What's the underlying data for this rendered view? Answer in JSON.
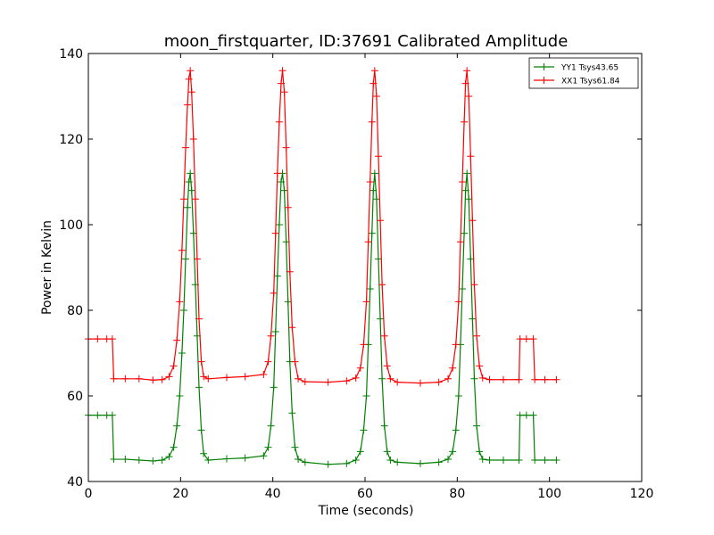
{
  "chart_data": {
    "type": "line",
    "title": "moon_firstquarter, ID:37691 Calibrated Amplitude",
    "xlabel": "Time (seconds)",
    "ylabel": "Power in Kelvin",
    "xlim": [
      0,
      120
    ],
    "ylim": [
      40,
      140
    ],
    "xticks": [
      "0",
      "20",
      "40",
      "60",
      "80",
      "100",
      "120"
    ],
    "yticks": [
      "40",
      "60",
      "80",
      "100",
      "120",
      "140"
    ],
    "grid": false,
    "legend_position": "top-right",
    "series": [
      {
        "name": "YY1 Tsys43.65",
        "color": "#008000",
        "x": [
          0,
          2,
          4,
          5.2,
          5.5,
          8,
          11,
          14,
          16,
          17.5,
          18.5,
          19.2,
          19.8,
          20.3,
          20.7,
          21.1,
          21.5,
          21.8,
          22.1,
          22.4,
          22.8,
          23.2,
          23.6,
          24.0,
          24.5,
          25,
          26,
          30,
          34,
          38,
          39,
          39.6,
          40.2,
          40.6,
          41.0,
          41.4,
          41.8,
          42.1,
          42.5,
          42.9,
          43.3,
          43.7,
          44.2,
          44.8,
          45.5,
          47,
          52,
          56,
          58,
          59,
          59.7,
          60.3,
          60.7,
          61.1,
          61.5,
          61.8,
          62.1,
          62.5,
          62.9,
          63.3,
          63.7,
          64.2,
          64.8,
          65.5,
          67,
          72,
          76,
          78,
          79,
          79.7,
          80.3,
          80.7,
          81.1,
          81.5,
          81.8,
          82.1,
          82.5,
          82.9,
          83.3,
          83.7,
          84.2,
          84.8,
          85.5,
          87,
          90,
          93.4,
          93.6,
          95,
          96.5,
          96.8,
          99,
          101.5
        ],
        "values": [
          55.5,
          55.5,
          55.5,
          55.5,
          45.2,
          45.2,
          45.0,
          44.8,
          45.0,
          45.8,
          48,
          53,
          60,
          70,
          80,
          92,
          104,
          110,
          112,
          108,
          98,
          86,
          74,
          62,
          52,
          46.5,
          45.0,
          45.3,
          45.5,
          46,
          48,
          53,
          62,
          75,
          88,
          100,
          110,
          112,
          108,
          96,
          82,
          68,
          56,
          48,
          45.2,
          44.5,
          44.0,
          44.2,
          45,
          47,
          52,
          60,
          72,
          85,
          98,
          108,
          112,
          106,
          92,
          78,
          64,
          53,
          47,
          45,
          44.5,
          44.2,
          44.5,
          45.2,
          47,
          52,
          60,
          72,
          85,
          98,
          108,
          112,
          106,
          92,
          78,
          64,
          53,
          47,
          45.2,
          45.0,
          45.0,
          45.0,
          55.5,
          55.5,
          55.5,
          45.0,
          45.0,
          45.0
        ]
      },
      {
        "name": "XX1 Tsys61.84",
        "color": "#ff0000",
        "x": [
          0,
          2,
          4,
          5.2,
          5.5,
          8,
          11,
          14,
          16,
          17.5,
          18.5,
          19.2,
          19.8,
          20.3,
          20.7,
          21.1,
          21.5,
          21.8,
          22.1,
          22.4,
          22.8,
          23.2,
          23.6,
          24.0,
          24.5,
          25,
          26,
          30,
          34,
          38,
          39,
          39.6,
          40.2,
          40.6,
          41.0,
          41.4,
          41.8,
          42.1,
          42.5,
          42.9,
          43.3,
          43.7,
          44.2,
          44.8,
          45.5,
          47,
          52,
          56,
          58,
          59,
          59.7,
          60.3,
          60.7,
          61.1,
          61.5,
          61.8,
          62.1,
          62.5,
          62.9,
          63.3,
          63.7,
          64.2,
          64.8,
          65.5,
          67,
          72,
          76,
          78,
          79,
          79.7,
          80.3,
          80.7,
          81.1,
          81.5,
          81.8,
          82.1,
          82.5,
          82.9,
          83.3,
          83.7,
          84.2,
          84.8,
          85.5,
          87,
          90,
          93.4,
          93.6,
          95,
          96.5,
          96.8,
          99,
          101.5
        ],
        "values": [
          73.3,
          73.3,
          73.3,
          73.3,
          64.0,
          64.0,
          64.0,
          63.7,
          63.8,
          64.5,
          67,
          73,
          82,
          94,
          106,
          118,
          128,
          134,
          136,
          131,
          120,
          106,
          92,
          78,
          68,
          64.5,
          64.0,
          64.3,
          64.5,
          65,
          68,
          74,
          84,
          98,
          112,
          124,
          133,
          136,
          131,
          118,
          104,
          89,
          76,
          68,
          64,
          63.3,
          63.2,
          63.5,
          64.2,
          66.5,
          72,
          82,
          96,
          110,
          124,
          133,
          136,
          130,
          116,
          101,
          86,
          74,
          67,
          64,
          63.2,
          63.0,
          63.2,
          64,
          66.5,
          72,
          82,
          96,
          110,
          124,
          133,
          136,
          130,
          116,
          101,
          86,
          74,
          67,
          64.2,
          63.8,
          63.8,
          63.8,
          73.3,
          73.3,
          73.3,
          63.8,
          63.8,
          63.8
        ]
      }
    ]
  }
}
